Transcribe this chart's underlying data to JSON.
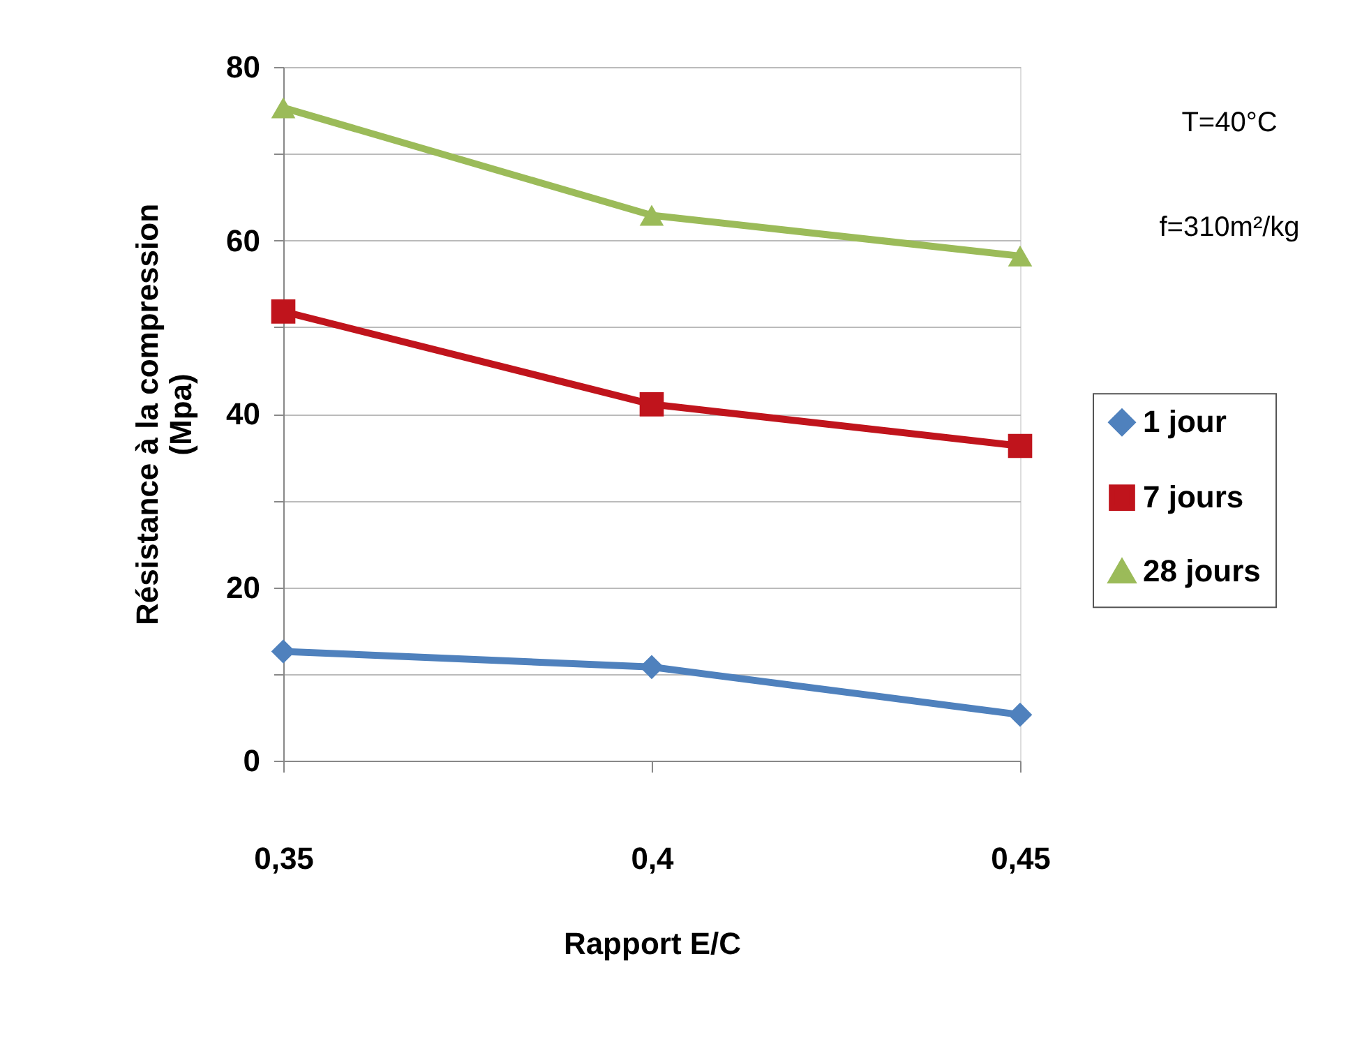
{
  "chart_data": {
    "type": "line",
    "xlabel": "Rapport E/C",
    "ylabel": "Résistance à la compression\n(Mpa)",
    "categories": [
      "0,35",
      "0,4",
      "0,45"
    ],
    "series": [
      {
        "name": "1 jour",
        "color": "#4f81bd",
        "marker": "diamond",
        "values": [
          12.6,
          10.8,
          5.3
        ]
      },
      {
        "name": "7 jours",
        "color": "#c0141c",
        "marker": "square",
        "values": [
          51.8,
          41.1,
          36.3
        ]
      },
      {
        "name": "28 jours",
        "color": "#9bbb59",
        "marker": "triangle",
        "values": [
          75.3,
          62.9,
          58.2
        ]
      }
    ],
    "ylim": [
      0,
      80
    ],
    "yticks": [
      0,
      {
        "value": 10,
        "label": null
      },
      20,
      {
        "value": 30,
        "label": null
      },
      40,
      {
        "value": 50,
        "label": null
      },
      60,
      {
        "value": 70,
        "label": null
      },
      80
    ],
    "grid": "y",
    "legend": "right",
    "line_style": "solid",
    "annotations": [
      "T=40°C",
      "f=310m²/kg"
    ]
  }
}
